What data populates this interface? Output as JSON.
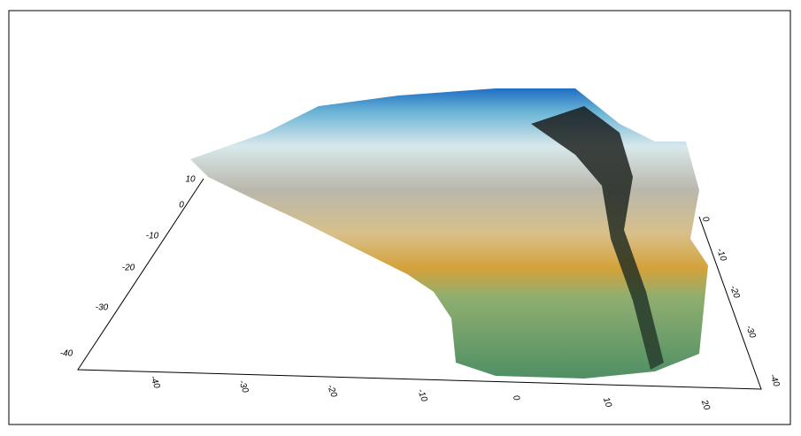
{
  "axes": {
    "left_ticks": [
      "10",
      "0",
      "-10",
      "-20",
      "-30",
      "-40"
    ],
    "bottom_ticks": [
      "-40",
      "-30",
      "-20",
      "-10",
      "0",
      "10",
      "20"
    ],
    "right_ticks": [
      "0",
      "-10",
      "-20",
      "-30",
      "-40"
    ]
  }
}
